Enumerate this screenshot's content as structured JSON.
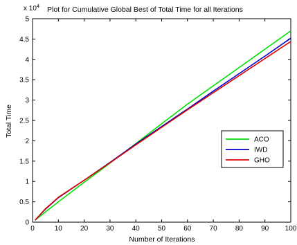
{
  "chart_data": {
    "type": "line",
    "title": "Plot for Cumulative Global Best of Total Time for all Iterations",
    "xlabel": "Number of Iterations",
    "ylabel": "Total Time",
    "exponent_base": "x 10",
    "exponent_power": "4",
    "xlim": [
      0,
      100
    ],
    "ylim": [
      0,
      5
    ],
    "y_scale_multiplier": 10000,
    "grid": false,
    "legend_position": "right",
    "x_ticks": [
      "0",
      "10",
      "20",
      "30",
      "40",
      "50",
      "60",
      "70",
      "80",
      "90",
      "100"
    ],
    "y_ticks": [
      "0",
      "0.5",
      "1",
      "1.5",
      "2",
      "2.5",
      "3",
      "3.5",
      "4",
      "4.5",
      "5"
    ],
    "series": [
      {
        "name": "ACO",
        "color": "#00e000",
        "x": [
          1,
          5,
          10,
          20,
          30,
          40,
          50,
          60,
          70,
          80,
          90,
          100
        ],
        "y": [
          0.05,
          0.25,
          0.5,
          0.98,
          1.45,
          1.93,
          2.42,
          2.9,
          3.35,
          3.8,
          4.25,
          4.7
        ]
      },
      {
        "name": "IWD",
        "color": "#0000cc",
        "x": [
          1,
          5,
          10,
          20,
          30,
          40,
          50,
          60,
          70,
          80,
          90,
          100
        ],
        "y": [
          0.05,
          0.32,
          0.6,
          1.03,
          1.47,
          1.92,
          2.35,
          2.78,
          3.22,
          3.65,
          4.08,
          4.52
        ]
      },
      {
        "name": "GHO",
        "color": "#dd0000",
        "x": [
          1,
          5,
          10,
          20,
          30,
          40,
          50,
          60,
          70,
          80,
          90,
          100
        ],
        "y": [
          0.05,
          0.33,
          0.61,
          1.03,
          1.46,
          1.9,
          2.33,
          2.76,
          3.18,
          3.6,
          4.02,
          4.44
        ]
      }
    ]
  }
}
